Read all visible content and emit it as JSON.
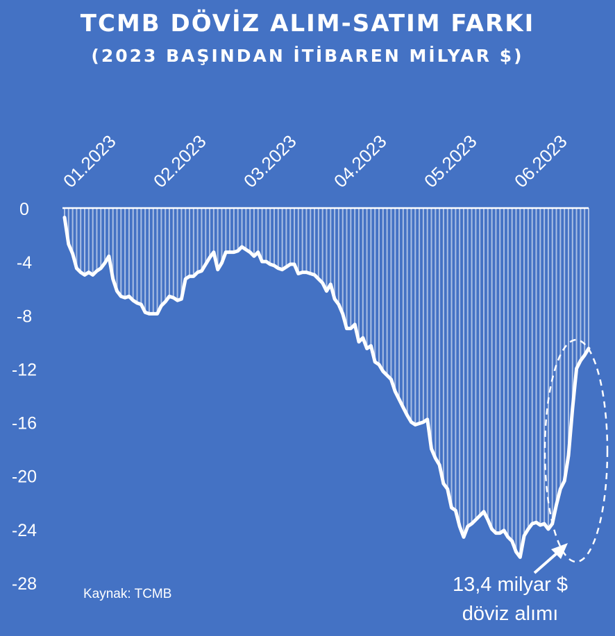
{
  "title": "TCMB DÖVİZ ALIM-SATIM FARKI",
  "subtitle": "(2023 BAŞINDAN İTİBAREN MİLYAR $)",
  "source": "Kaynak: TCMB",
  "annotation": {
    "line1": "13,4 milyar $",
    "line2": "döviz alımı"
  },
  "colors": {
    "background": "#4472C4",
    "line": "#FFFFFF",
    "bars": "#FFFFFF"
  },
  "chart_data": {
    "type": "line",
    "title": "TCMB DÖVİZ ALIM-SATIM FARKI",
    "subtitle": "(2023 BAŞINDAN İTİBAREN MİLYAR $)",
    "xlabel": "",
    "ylabel": "",
    "x_tick_labels": [
      "01.2023",
      "02.2023",
      "03.2023",
      "04.2023",
      "05.2023",
      "06.2023"
    ],
    "y_tick_labels": [
      "0",
      "-4",
      "-8",
      "-12",
      "-16",
      "-20",
      "-24",
      "-28"
    ],
    "ylim": [
      -28,
      0
    ],
    "grid": false,
    "legend": "none",
    "series": [
      {
        "values": [
          -0.7,
          -2.7,
          -3.4,
          -4.5,
          -4.8,
          -5.0,
          -4.8,
          -5.0,
          -4.7,
          -4.5,
          -4.1,
          -3.6,
          -5.3,
          -6.2,
          -6.6,
          -6.7,
          -6.6,
          -6.9,
          -7.1,
          -7.2,
          -7.8,
          -7.9,
          -7.9,
          -7.9,
          -7.3,
          -7.0,
          -6.6,
          -6.7,
          -6.9,
          -6.8,
          -5.3,
          -5.1,
          -5.1,
          -4.8,
          -4.7,
          -4.2,
          -3.7,
          -3.3,
          -4.6,
          -4.1,
          -3.3,
          -3.3,
          -3.3,
          -3.2,
          -2.9,
          -3.1,
          -3.3,
          -3.6,
          -3.3,
          -4.0,
          -4.0,
          -4.2,
          -4.3,
          -4.5,
          -4.6,
          -4.4,
          -4.2,
          -4.2,
          -4.9,
          -4.8,
          -4.8,
          -4.9,
          -5.0,
          -5.3,
          -5.6,
          -6.2,
          -5.7,
          -6.8,
          -7.2,
          -7.9,
          -9.0,
          -9.0,
          -8.7,
          -10.0,
          -9.7,
          -10.5,
          -10.3,
          -11.5,
          -11.7,
          -12.2,
          -12.5,
          -12.8,
          -13.7,
          -14.3,
          -14.9,
          -15.5,
          -16.0,
          -16.2,
          -16.1,
          -16.0,
          -15.8,
          -18.0,
          -18.7,
          -19.2,
          -20.6,
          -21.0,
          -22.4,
          -22.6,
          -23.8,
          -24.6,
          -23.8,
          -23.6,
          -23.3,
          -23.0,
          -22.7,
          -23.3,
          -24.0,
          -24.3,
          -24.3,
          -24.1,
          -24.6,
          -24.9,
          -25.7,
          -26.1,
          -24.5,
          -24.0,
          -23.6,
          -23.5,
          -23.7,
          -23.6,
          -24.0,
          -23.6,
          -22.2,
          -21.0,
          -20.4,
          -18.5,
          -15.0,
          -12.0,
          -11.4,
          -11.0,
          -10.5
        ]
      }
    ]
  }
}
